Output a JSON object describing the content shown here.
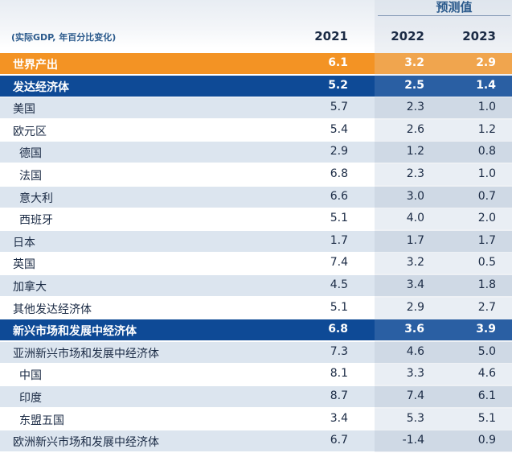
{
  "header": {
    "forecast_label": "预测值",
    "unit_note": "(实际GDP, 年百分比变化)",
    "columns": [
      "2021",
      "2022",
      "2023"
    ]
  },
  "rows": [
    {
      "label": "世界产出",
      "v2021": "6.1",
      "v2022": "3.2",
      "v2023": "2.9",
      "style": "orange"
    },
    {
      "label": "发达经济体",
      "v2021": "5.2",
      "v2022": "2.5",
      "v2023": "1.4",
      "style": "blue"
    },
    {
      "label": "美国",
      "v2021": "5.7",
      "v2022": "2.3",
      "v2023": "1.0",
      "style": "light"
    },
    {
      "label": "欧元区",
      "v2021": "5.4",
      "v2022": "2.6",
      "v2023": "1.2",
      "style": "white"
    },
    {
      "label": "德国",
      "v2021": "2.9",
      "v2022": "1.2",
      "v2023": "0.8",
      "style": "light",
      "indent": true
    },
    {
      "label": "法国",
      "v2021": "6.8",
      "v2022": "2.3",
      "v2023": "1.0",
      "style": "white",
      "indent": true
    },
    {
      "label": "意大利",
      "v2021": "6.6",
      "v2022": "3.0",
      "v2023": "0.7",
      "style": "light",
      "indent": true
    },
    {
      "label": "西班牙",
      "v2021": "5.1",
      "v2022": "4.0",
      "v2023": "2.0",
      "style": "white",
      "indent": true
    },
    {
      "label": "日本",
      "v2021": "1.7",
      "v2022": "1.7",
      "v2023": "1.7",
      "style": "light"
    },
    {
      "label": "英国",
      "v2021": "7.4",
      "v2022": "3.2",
      "v2023": "0.5",
      "style": "white"
    },
    {
      "label": "加拿大",
      "v2021": "4.5",
      "v2022": "3.4",
      "v2023": "1.8",
      "style": "light"
    },
    {
      "label": "其他发达经济体",
      "v2021": "5.1",
      "v2022": "2.9",
      "v2023": "2.7",
      "style": "white"
    },
    {
      "label": "新兴市场和发展中经济体",
      "v2021": "6.8",
      "v2022": "3.6",
      "v2023": "3.9",
      "style": "blue"
    },
    {
      "label": "亚洲新兴市场和发展中经济体",
      "v2021": "7.3",
      "v2022": "4.6",
      "v2023": "5.0",
      "style": "light"
    },
    {
      "label": "中国",
      "v2021": "8.1",
      "v2022": "3.3",
      "v2023": "4.6",
      "style": "white",
      "indent": true
    },
    {
      "label": "印度",
      "v2021": "8.7",
      "v2022": "7.4",
      "v2023": "6.1",
      "style": "light",
      "indent": true
    },
    {
      "label": "东盟五国",
      "v2021": "3.4",
      "v2022": "5.3",
      "v2023": "5.1",
      "style": "white",
      "indent": true
    },
    {
      "label": "欧洲新兴市场和发展中经济体",
      "v2021": "6.7",
      "v2022": "-1.4",
      "v2023": "0.9",
      "style": "light"
    }
  ]
}
